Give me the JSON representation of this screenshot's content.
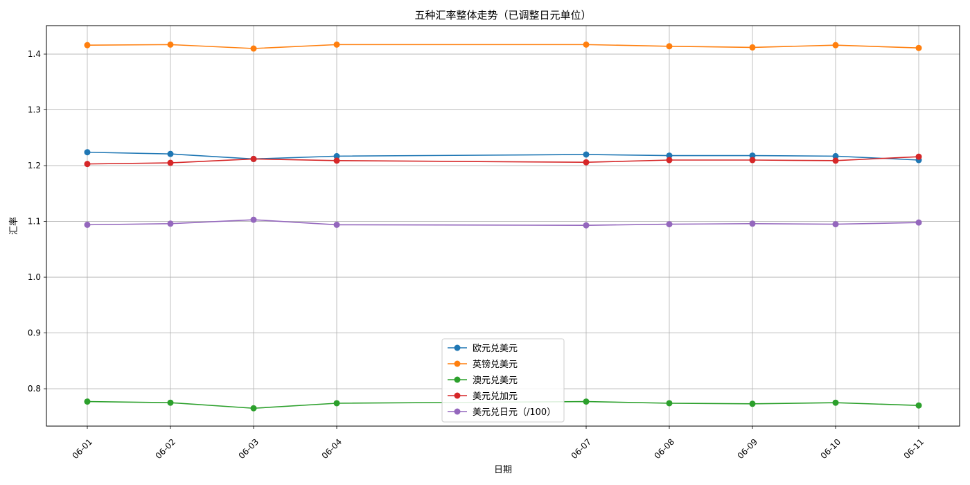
{
  "chart_data": {
    "type": "line",
    "title": "五种汇率整体走势（已调整日元单位）",
    "xlabel": "日期",
    "ylabel": "汇率",
    "x": [
      "2024-06-01",
      "2024-06-02",
      "2024-06-03",
      "2024-06-04",
      "2024-06-07",
      "2024-06-08",
      "2024-06-09",
      "2024-06-10",
      "2024-06-11"
    ],
    "x_tick_labels": [
      "06-01",
      "06-02",
      "06-03",
      "06-04",
      "06-07",
      "06-08",
      "06-09",
      "06-10",
      "06-11"
    ],
    "y_ticks": [
      0.8,
      0.9,
      1.0,
      1.1,
      1.2,
      1.3,
      1.4
    ],
    "y_tick_labels": [
      "0.8",
      "0.9",
      "1.0",
      "1.1",
      "1.2",
      "1.3",
      "1.4"
    ],
    "ylim": [
      0.733,
      1.451
    ],
    "grid": true,
    "legend_position": "bottom-center",
    "series": [
      {
        "name": "欧元兑美元",
        "color": "#1f77b4",
        "values": [
          1.224,
          1.221,
          1.212,
          1.217,
          1.22,
          1.218,
          1.218,
          1.217,
          1.21
        ]
      },
      {
        "name": "英镑兑美元",
        "color": "#ff7f0e",
        "values": [
          1.416,
          1.417,
          1.41,
          1.417,
          1.417,
          1.414,
          1.412,
          1.416,
          1.411
        ]
      },
      {
        "name": "澳元兑美元",
        "color": "#2ca02c",
        "values": [
          0.777,
          0.775,
          0.765,
          0.774,
          0.777,
          0.774,
          0.773,
          0.775,
          0.77
        ]
      },
      {
        "name": "美元兑加元",
        "color": "#d62728",
        "values": [
          1.203,
          1.205,
          1.212,
          1.209,
          1.206,
          1.21,
          1.21,
          1.209,
          1.216
        ]
      },
      {
        "name": "美元兑日元（/100）",
        "color": "#9467bd",
        "values": [
          1.094,
          1.096,
          1.103,
          1.094,
          1.093,
          1.095,
          1.096,
          1.095,
          1.098
        ]
      }
    ]
  }
}
